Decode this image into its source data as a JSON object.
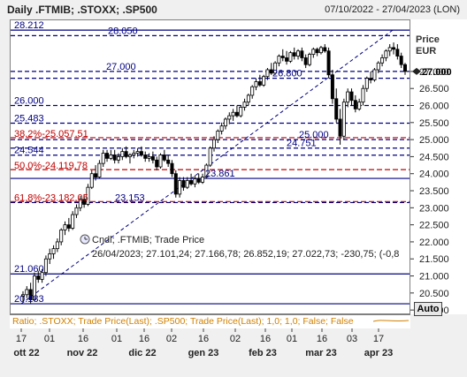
{
  "header": {
    "title": "Daily .FTMIB; .STOXX; .SP500",
    "range": "07/10/2022 - 27/04/2023 (LON)"
  },
  "right_axis": {
    "title": "Price",
    "currency": "EUR",
    "auto_label": "Auto"
  },
  "info": {
    "title": "Cndl; .FTMIB; Trade Price",
    "values": "26/04/2023; 27.101,24; 27.166,78; 26.852,19; 27.022,73; -230,75; (-0,8"
  },
  "status_bar": {
    "text": "Ratio; .STOXX; Trade Price(Last); .SP500; Trade Price(Last); 1,0; 1,0; False; False"
  },
  "colors": {
    "candle_up": "#ffffff",
    "candle_down": "#000000",
    "navy": "#000080",
    "fib": "#c00000",
    "status": "#d08000"
  },
  "chart_data": {
    "type": "candlestick",
    "yticks": [
      "20.000",
      "20.500",
      "21.000",
      "21.500",
      "22.000",
      "22.500",
      "23.000",
      "23.500",
      "24.000",
      "24.500",
      "25.000",
      "25.500",
      "26.000",
      "26.500",
      "27.000"
    ],
    "ylim": [
      19900,
      28500
    ],
    "xtick_days": [
      "17",
      "01",
      "16",
      "01",
      "16",
      "02",
      "16",
      "02",
      "16",
      "01",
      "16",
      "01",
      "16",
      "03",
      "17"
    ],
    "xtick_months": [
      "ott 22",
      "nov 22",
      "dic 22",
      "gen 23",
      "feb 23",
      "mar 23",
      "apr 23"
    ],
    "current_price": "27.000",
    "levels": [
      {
        "value": 28212,
        "label": "28.212"
      },
      {
        "value": 28050,
        "label": "28.050"
      },
      {
        "value": 27000,
        "label": "27.000"
      },
      {
        "value": 26800,
        "label": "26.800"
      },
      {
        "value": 26000,
        "label": "26.000"
      },
      {
        "value": 25483,
        "label": "25.483"
      },
      {
        "value": 25000,
        "label": "25.000"
      },
      {
        "value": 24751,
        "label": "24.751"
      },
      {
        "value": 24544,
        "label": "24.544"
      },
      {
        "value": 23861,
        "label": "23.861"
      },
      {
        "value": 23153,
        "label": "23.153"
      },
      {
        "value": 21060,
        "label": "21.060"
      },
      {
        "value": 20183,
        "label": "20.183"
      }
    ],
    "fib_levels": [
      {
        "value": 25057,
        "label": "38,2%-25.057,51"
      },
      {
        "value": 24120,
        "label": "50,0%-24.119,78"
      },
      {
        "value": 23182,
        "label": "61,8%-23.182,05"
      }
    ],
    "candles": [
      [
        20400,
        20550,
        20250,
        20450
      ],
      [
        20450,
        20700,
        20350,
        20600
      ],
      [
        20600,
        20800,
        20200,
        20300
      ],
      [
        20300,
        21100,
        20250,
        21000
      ],
      [
        21000,
        21150,
        20800,
        20900
      ],
      [
        20900,
        21200,
        20800,
        21100
      ],
      [
        21100,
        21600,
        21000,
        21500
      ],
      [
        21500,
        21800,
        21350,
        21650
      ],
      [
        21650,
        21900,
        21500,
        21800
      ],
      [
        21800,
        22100,
        21700,
        22000
      ],
      [
        22000,
        22400,
        21900,
        22350
      ],
      [
        22350,
        22600,
        22200,
        22500
      ],
      [
        22500,
        22700,
        22300,
        22400
      ],
      [
        22400,
        22900,
        22350,
        22800
      ],
      [
        22800,
        23100,
        22700,
        23000
      ],
      [
        23000,
        23350,
        22900,
        23250
      ],
      [
        23250,
        23400,
        23000,
        23100
      ],
      [
        23100,
        23700,
        23050,
        23600
      ],
      [
        23600,
        24100,
        23550,
        24000
      ],
      [
        24000,
        24250,
        23800,
        23900
      ],
      [
        23900,
        24400,
        23850,
        24300
      ],
      [
        24300,
        24700,
        24200,
        24600
      ],
      [
        24600,
        24700,
        24350,
        24450
      ],
      [
        24450,
        24700,
        24400,
        24550
      ],
      [
        24550,
        24700,
        24300,
        24400
      ],
      [
        24400,
        24600,
        24300,
        24500
      ],
      [
        24500,
        24750,
        24400,
        24650
      ],
      [
        24650,
        24800,
        24450,
        24500
      ],
      [
        24500,
        24600,
        24300,
        24550
      ],
      [
        24550,
        24700,
        24450,
        24600
      ],
      [
        24600,
        24750,
        24500,
        24650
      ],
      [
        24650,
        24800,
        24500,
        24550
      ],
      [
        24550,
        24650,
        24350,
        24450
      ],
      [
        24450,
        24600,
        24350,
        24500
      ],
      [
        24500,
        24650,
        24300,
        24400
      ],
      [
        24400,
        24500,
        24100,
        24200
      ],
      [
        24200,
        24600,
        24150,
        24550
      ],
      [
        24550,
        24700,
        24350,
        24400
      ],
      [
        24400,
        24550,
        24200,
        24300
      ],
      [
        24300,
        24400,
        23900,
        24000
      ],
      [
        24000,
        24100,
        23300,
        23400
      ],
      [
        23400,
        23900,
        23300,
        23800
      ],
      [
        23800,
        23900,
        23500,
        23600
      ],
      [
        23600,
        23900,
        23550,
        23800
      ],
      [
        23800,
        24000,
        23650,
        23700
      ],
      [
        23700,
        23950,
        23600,
        23850
      ],
      [
        23850,
        24000,
        23700,
        23750
      ],
      [
        23750,
        24000,
        23700,
        23900
      ],
      [
        23900,
        24300,
        23850,
        24250
      ],
      [
        24250,
        24800,
        24200,
        24750
      ],
      [
        24750,
        25100,
        24650,
        25000
      ],
      [
        25000,
        25300,
        24900,
        25250
      ],
      [
        25250,
        25500,
        25150,
        25400
      ],
      [
        25400,
        25650,
        25300,
        25600
      ],
      [
        25600,
        25800,
        25450,
        25700
      ],
      [
        25700,
        25900,
        25550,
        25800
      ],
      [
        25800,
        26000,
        25650,
        25700
      ],
      [
        25700,
        26000,
        25650,
        25950
      ],
      [
        25950,
        26200,
        25850,
        26100
      ],
      [
        26100,
        26350,
        26000,
        26300
      ],
      [
        26300,
        26600,
        26200,
        26550
      ],
      [
        26550,
        26800,
        26450,
        26700
      ],
      [
        26700,
        26900,
        26550,
        26600
      ],
      [
        26600,
        26900,
        26550,
        26850
      ],
      [
        26850,
        27100,
        26750,
        27050
      ],
      [
        27050,
        27250,
        26900,
        26950
      ],
      [
        26950,
        27300,
        26900,
        27250
      ],
      [
        27250,
        27500,
        27150,
        27450
      ],
      [
        27450,
        27650,
        27300,
        27400
      ],
      [
        27400,
        27600,
        27200,
        27300
      ],
      [
        27300,
        27600,
        27250,
        27550
      ],
      [
        27550,
        27700,
        27350,
        27450
      ],
      [
        27450,
        27650,
        27350,
        27600
      ],
      [
        27600,
        27700,
        27300,
        27400
      ],
      [
        27400,
        27500,
        27100,
        27200
      ],
      [
        27200,
        27550,
        27150,
        27500
      ],
      [
        27500,
        27700,
        27400,
        27650
      ],
      [
        27650,
        27700,
        27450,
        27550
      ],
      [
        27550,
        27750,
        27500,
        27700
      ],
      [
        27700,
        27800,
        27550,
        27600
      ],
      [
        27600,
        27700,
        26800,
        26900
      ],
      [
        26900,
        27050,
        26050,
        26200
      ],
      [
        26200,
        26500,
        25500,
        25600
      ],
      [
        25600,
        25900,
        24850,
        25100
      ],
      [
        25100,
        26200,
        25000,
        26100
      ],
      [
        26100,
        26500,
        25950,
        26400
      ],
      [
        26400,
        26500,
        26000,
        26150
      ],
      [
        26150,
        26300,
        25800,
        25900
      ],
      [
        25900,
        26200,
        25850,
        26100
      ],
      [
        26100,
        26600,
        26000,
        26500
      ],
      [
        26500,
        26850,
        26400,
        26800
      ],
      [
        26800,
        27000,
        26650,
        26750
      ],
      [
        26750,
        27100,
        26700,
        27050
      ],
      [
        27050,
        27300,
        26950,
        27250
      ],
      [
        27250,
        27500,
        27150,
        27400
      ],
      [
        27400,
        27650,
        27300,
        27600
      ],
      [
        27600,
        27800,
        27450,
        27700
      ],
      [
        27700,
        27850,
        27500,
        27650
      ],
      [
        27650,
        27800,
        27350,
        27450
      ],
      [
        27450,
        27550,
        27100,
        27200
      ],
      [
        27200,
        27250,
        26900,
        27000
      ]
    ]
  }
}
